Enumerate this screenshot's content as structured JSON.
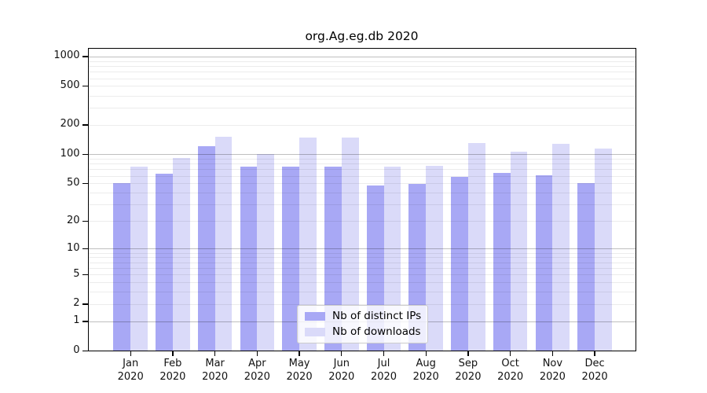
{
  "chart_data": {
    "type": "bar",
    "title": "org.Ag.eg.db 2020",
    "categories": [
      "Jan",
      "Feb",
      "Mar",
      "Apr",
      "May",
      "Jun",
      "Jul",
      "Aug",
      "Sep",
      "Oct",
      "Nov",
      "Dec"
    ],
    "year_label": "2020",
    "series": [
      {
        "id": "distinct-ips",
        "name": "Nb of distinct IPs",
        "color": "#a8a8f5",
        "values": [
          50,
          63,
          120,
          74,
          75,
          74,
          48,
          49,
          59,
          64,
          61,
          50
        ]
      },
      {
        "id": "downloads",
        "name": "Nb of downloads",
        "color": "#dadaf9",
        "values": [
          74,
          91,
          150,
          101,
          149,
          149,
          74,
          76,
          131,
          106,
          127,
          115
        ]
      }
    ],
    "y_ticks": [
      0,
      1,
      2,
      5,
      10,
      20,
      50,
      100,
      200,
      500,
      1000
    ],
    "y_scale": "log10(value+1)",
    "ylim": [
      0,
      1000
    ],
    "xlabel": "",
    "ylabel": "",
    "grid": "horizontal, faint minors each decade + gray majors at 1/10/100/1000",
    "legend_position": "bottom-center"
  }
}
